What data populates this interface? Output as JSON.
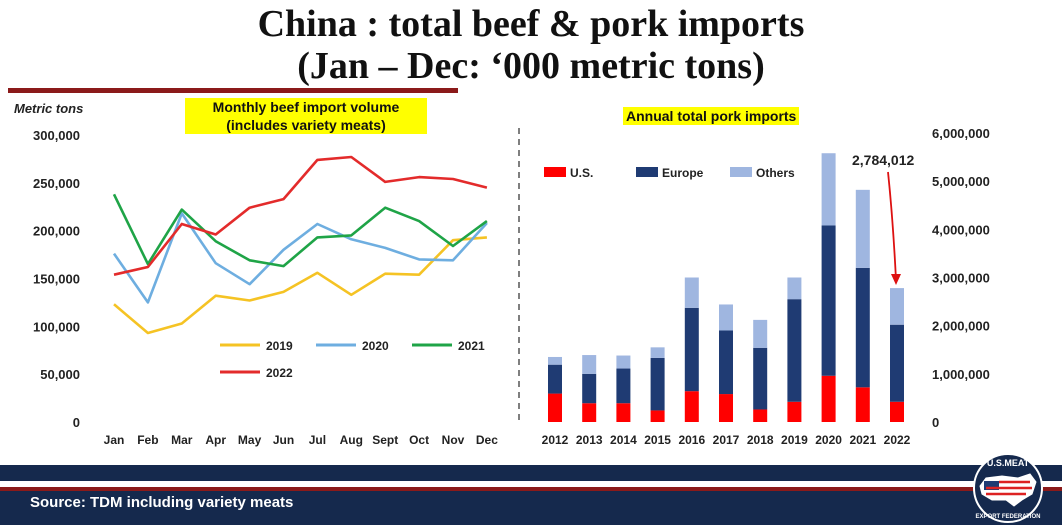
{
  "title": {
    "line1": "China : total beef  & pork imports",
    "line2": "(Jan – Dec: ‘000 metric tons)"
  },
  "footer": {
    "source": "Source: TDM including variety meats",
    "logo_text_top": "U.S.MEAT",
    "logo_text_bottom": "EXPORT FEDERATION"
  },
  "colors": {
    "y2019": "#f5c324",
    "y2020": "#6eaee0",
    "y2021": "#1fa447",
    "y2022": "#e32b2b",
    "us": "#ff0000",
    "europe": "#1f3b73",
    "others": "#9fb6e0"
  },
  "chart_data": [
    {
      "type": "line",
      "title": "Monthly beef import volume\n(includes variety meats)",
      "title_lines": [
        "Monthly beef import volume",
        "(includes variety meats)"
      ],
      "ylabel": "Metric tons",
      "ylim": [
        0,
        300000
      ],
      "yticks": [
        "0",
        "50,000",
        "100,000",
        "150,000",
        "200,000",
        "250,000",
        "300,000"
      ],
      "categories": [
        "Jan",
        "Feb",
        "Mar",
        "Apr",
        "May",
        "Jun",
        "Jul",
        "Aug",
        "Sept",
        "Oct",
        "Nov",
        "Dec"
      ],
      "series": [
        {
          "name": "2019",
          "values": [
            123000,
            93000,
            103000,
            132000,
            127000,
            136000,
            156000,
            133000,
            155000,
            154000,
            190000,
            193000
          ]
        },
        {
          "name": "2020",
          "values": [
            176000,
            125000,
            218000,
            166000,
            144000,
            180000,
            207000,
            191000,
            182000,
            170000,
            169000,
            208000
          ]
        },
        {
          "name": "2021",
          "values": [
            238000,
            165000,
            222000,
            189000,
            169000,
            163000,
            193000,
            195000,
            224000,
            210000,
            184000,
            210000
          ]
        },
        {
          "name": "2022",
          "values": [
            154000,
            162000,
            207000,
            196000,
            224000,
            233000,
            274000,
            277000,
            251000,
            256000,
            254000,
            245000
          ]
        }
      ],
      "legend": "bottom-center",
      "grid": false
    },
    {
      "type": "bar",
      "stacked": true,
      "title": "Annual total pork imports",
      "ylim": [
        0,
        6000000
      ],
      "yticks": [
        "0",
        "1,000,000",
        "2,000,000",
        "3,000,000",
        "4,000,000",
        "5,000,000",
        "6,000,000"
      ],
      "categories": [
        "2012",
        "2013",
        "2014",
        "2015",
        "2016",
        "2017",
        "2018",
        "2019",
        "2020",
        "2021",
        "2022"
      ],
      "series": [
        {
          "name": "U.S.",
          "values": [
            590000,
            390000,
            390000,
            240000,
            640000,
            580000,
            260000,
            420000,
            960000,
            720000,
            420000
          ]
        },
        {
          "name": "Europe",
          "values": [
            600000,
            610000,
            720000,
            1090000,
            1730000,
            1320000,
            1280000,
            2130000,
            3120000,
            2480000,
            1600000
          ]
        },
        {
          "name": "Others",
          "values": [
            160000,
            390000,
            270000,
            220000,
            630000,
            540000,
            580000,
            450000,
            1500000,
            1620000,
            760000
          ]
        }
      ],
      "annotation": "2,784,012",
      "legend": "top-left",
      "grid": false
    }
  ]
}
